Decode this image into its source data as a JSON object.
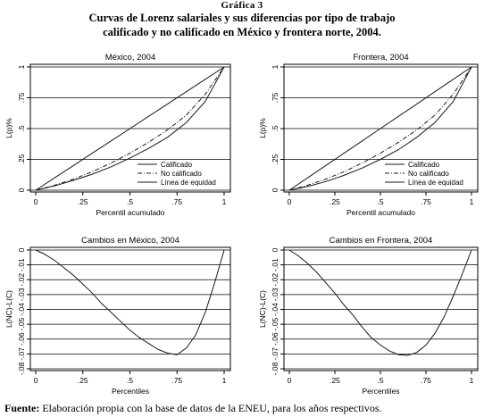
{
  "figure": {
    "label": "Gráfica 3",
    "title_line1": "Curvas de Lorenz salariales y sus diferencias por tipo de trabajo",
    "title_line2": "calificado y no calificado en México y frontera norte, 2004.",
    "source_bold": "Fuente:",
    "source_text": " Elaboración propia con la base de datos de la ENEU, para los años respectivos."
  },
  "chart_data": [
    {
      "type": "line",
      "title": "México, 2004",
      "xlabel": "Percentil acumulado",
      "ylabel": "L(p)%",
      "xlim": [
        0,
        1
      ],
      "ylim": [
        0,
        1
      ],
      "xticks": [
        "0",
        ".25",
        ".5",
        ".75",
        "1"
      ],
      "yticks": [
        "0",
        ".25",
        ".5",
        ".75",
        "1"
      ],
      "grid": "horizontal",
      "legend_position": "bottom-right",
      "x": [
        0,
        0.1,
        0.2,
        0.3,
        0.4,
        0.5,
        0.6,
        0.7,
        0.8,
        0.9,
        1.0
      ],
      "series": [
        {
          "name": "Calificado",
          "style": "solid",
          "values": [
            0,
            0.035,
            0.08,
            0.13,
            0.19,
            0.26,
            0.34,
            0.43,
            0.55,
            0.72,
            1.0
          ]
        },
        {
          "name": "No calificado",
          "style": "dashdot",
          "values": [
            0,
            0.04,
            0.09,
            0.15,
            0.22,
            0.3,
            0.39,
            0.49,
            0.61,
            0.78,
            1.0
          ]
        },
        {
          "name": "Línea de equidad",
          "style": "solid",
          "values": [
            0,
            0.1,
            0.2,
            0.3,
            0.4,
            0.5,
            0.6,
            0.7,
            0.8,
            0.9,
            1.0
          ]
        }
      ]
    },
    {
      "type": "line",
      "title": "Frontera, 2004",
      "xlabel": "Percentil acumulado",
      "ylabel": "L(p)%",
      "xlim": [
        0,
        1
      ],
      "ylim": [
        0,
        1
      ],
      "xticks": [
        "0",
        ".25",
        ".5",
        ".75",
        "1"
      ],
      "yticks": [
        "0",
        ".25",
        ".5",
        ".75",
        "1"
      ],
      "grid": "horizontal",
      "legend_position": "bottom-right",
      "x": [
        0,
        0.1,
        0.2,
        0.3,
        0.4,
        0.5,
        0.6,
        0.7,
        0.8,
        0.9,
        1.0
      ],
      "series": [
        {
          "name": "Calificado",
          "style": "solid",
          "values": [
            0,
            0.03,
            0.07,
            0.12,
            0.18,
            0.25,
            0.33,
            0.43,
            0.55,
            0.72,
            1.0
          ]
        },
        {
          "name": "No calificado",
          "style": "dashdot",
          "values": [
            0,
            0.04,
            0.09,
            0.15,
            0.22,
            0.3,
            0.39,
            0.49,
            0.61,
            0.78,
            1.0
          ]
        },
        {
          "name": "Línea de equidad",
          "style": "solid",
          "values": [
            0,
            0.1,
            0.2,
            0.3,
            0.4,
            0.5,
            0.6,
            0.7,
            0.8,
            0.9,
            1.0
          ]
        }
      ]
    },
    {
      "type": "line",
      "title": "Cambios en México, 2004",
      "xlabel": "Percentiles",
      "ylabel": "L(NC)-L(C)",
      "xlim": [
        0,
        1
      ],
      "ylim": [
        -0.08,
        0
      ],
      "xticks": [
        "0",
        ".25",
        ".5",
        ".75",
        "1"
      ],
      "yticks": [
        "-.08",
        "-.07",
        "-.06",
        "-.05",
        "-.04",
        "-.03",
        "-.02",
        "-.01",
        "0"
      ],
      "grid": "horizontal",
      "x": [
        0,
        0.05,
        0.1,
        0.15,
        0.2,
        0.25,
        0.3,
        0.35,
        0.4,
        0.45,
        0.5,
        0.55,
        0.6,
        0.65,
        0.7,
        0.75,
        0.8,
        0.85,
        0.9,
        0.95,
        1.0
      ],
      "series": [
        {
          "name": "",
          "style": "solid",
          "values": [
            0,
            -0.003,
            -0.007,
            -0.012,
            -0.017,
            -0.023,
            -0.029,
            -0.036,
            -0.042,
            -0.048,
            -0.054,
            -0.059,
            -0.063,
            -0.067,
            -0.0695,
            -0.0705,
            -0.066,
            -0.057,
            -0.042,
            -0.022,
            0
          ]
        }
      ]
    },
    {
      "type": "line",
      "title": "Cambios en Frontera, 2004",
      "xlabel": "Percentiles",
      "ylabel": "L(NC)-L(C)",
      "xlim": [
        0,
        1
      ],
      "ylim": [
        -0.08,
        0
      ],
      "xticks": [
        "0",
        ".25",
        ".5",
        ".75",
        "1"
      ],
      "yticks": [
        "-.08",
        "-.07",
        "-.06",
        "-.05",
        "-.04",
        "-.03",
        "-.02",
        "-.01",
        "0"
      ],
      "grid": "horizontal",
      "x": [
        0,
        0.05,
        0.1,
        0.15,
        0.2,
        0.25,
        0.3,
        0.35,
        0.4,
        0.45,
        0.5,
        0.55,
        0.6,
        0.65,
        0.7,
        0.75,
        0.8,
        0.85,
        0.9,
        0.95,
        1.0
      ],
      "series": [
        {
          "name": "",
          "style": "solid",
          "values": [
            0,
            -0.004,
            -0.009,
            -0.015,
            -0.022,
            -0.029,
            -0.037,
            -0.044,
            -0.052,
            -0.059,
            -0.064,
            -0.068,
            -0.0705,
            -0.071,
            -0.069,
            -0.064,
            -0.056,
            -0.045,
            -0.031,
            -0.016,
            0
          ]
        }
      ]
    }
  ]
}
